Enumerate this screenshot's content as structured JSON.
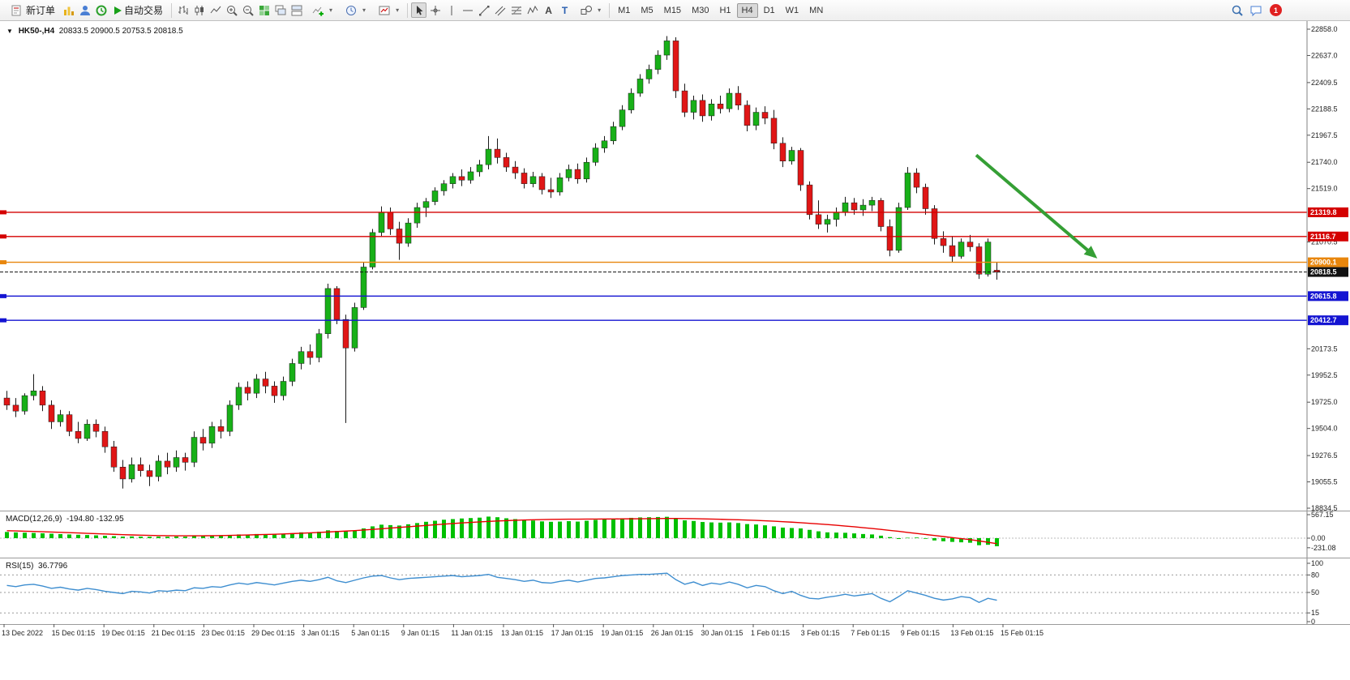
{
  "toolbar": {
    "new_order": "新订单",
    "auto_trading": "自动交易",
    "text_tool": "A",
    "label_tool": "T",
    "timeframes": [
      "M1",
      "M5",
      "M15",
      "M30",
      "H1",
      "H4",
      "D1",
      "W1",
      "MN"
    ],
    "active_timeframe": "H4",
    "notification_count": "1"
  },
  "chart_data": [
    {
      "type": "candlestick",
      "symbol": "HK50-",
      "period": "H4",
      "title": "HK50-,H4",
      "current_ohlc": "20833.5 20900.5 20753.5 20818.5",
      "ylim": [
        18720,
        22970
      ],
      "y_ticks": [
        "22858.0",
        "22637.0",
        "22409.5",
        "22188.5",
        "21967.5",
        "21740.0",
        "21519.0",
        "21070.5",
        "20173.5",
        "19952.5",
        "19725.0",
        "19504.0",
        "19276.5",
        "19055.5",
        "18834.5"
      ],
      "x_labels": [
        "13 Dec 2022",
        "15 Dec 01:15",
        "19 Dec 01:15",
        "21 Dec 01:15",
        "23 Dec 01:15",
        "29 Dec 01:15",
        "3 Jan 01:15",
        "5 Jan 01:15",
        "9 Jan 01:15",
        "11 Jan 01:15",
        "13 Jan 01:15",
        "17 Jan 01:15",
        "19 Jan 01:15",
        "26 Jan 01:15",
        "30 Jan 01:15",
        "1 Feb 01:15",
        "3 Feb 01:15",
        "7 Feb 01:15",
        "9 Feb 01:15",
        "13 Feb 01:15",
        "15 Feb 01:15"
      ],
      "hlines": [
        {
          "price": 21319.8,
          "label": "21319.8",
          "color": "#d40000"
        },
        {
          "price": 21116.7,
          "label": "21116.7",
          "color": "#d40000"
        },
        {
          "price": 20900.1,
          "label": "20900.1",
          "color": "#e8860c"
        },
        {
          "price": 20615.8,
          "label": "20615.8",
          "color": "#1414d2"
        },
        {
          "price": 20412.7,
          "label": "20412.7",
          "color": "#1414d2"
        }
      ],
      "bid_line": {
        "price": 20818.5,
        "label": "20818.5",
        "color": "#111111"
      },
      "arrow": {
        "from_bar": 109,
        "from_price": 21800,
        "to_bar": 122.3,
        "to_price": 20950,
        "color": "#359f35"
      },
      "colors": {
        "up": "#18b018",
        "down": "#e01616",
        "outline": "#1a1a1a"
      },
      "candles": [
        [
          19760,
          19820,
          19660,
          19700
        ],
        [
          19700,
          19760,
          19600,
          19650
        ],
        [
          19650,
          19800,
          19620,
          19780
        ],
        [
          19780,
          19960,
          19740,
          19820
        ],
        [
          19820,
          19860,
          19650,
          19700
        ],
        [
          19700,
          19740,
          19500,
          19560
        ],
        [
          19560,
          19660,
          19520,
          19620
        ],
        [
          19620,
          19650,
          19440,
          19480
        ],
        [
          19480,
          19560,
          19380,
          19420
        ],
        [
          19420,
          19580,
          19400,
          19540
        ],
        [
          19540,
          19580,
          19430,
          19480
        ],
        [
          19480,
          19520,
          19300,
          19350
        ],
        [
          19350,
          19400,
          19140,
          19180
        ],
        [
          19180,
          19240,
          19000,
          19080
        ],
        [
          19080,
          19260,
          19050,
          19200
        ],
        [
          19200,
          19260,
          19100,
          19150
        ],
        [
          19150,
          19200,
          19020,
          19100
        ],
        [
          19100,
          19280,
          19060,
          19230
        ],
        [
          19230,
          19300,
          19120,
          19180
        ],
        [
          19180,
          19320,
          19140,
          19260
        ],
        [
          19260,
          19300,
          19150,
          19220
        ],
        [
          19220,
          19480,
          19180,
          19430
        ],
        [
          19430,
          19500,
          19320,
          19380
        ],
        [
          19380,
          19560,
          19340,
          19520
        ],
        [
          19520,
          19580,
          19420,
          19480
        ],
        [
          19480,
          19740,
          19440,
          19700
        ],
        [
          19700,
          19890,
          19660,
          19850
        ],
        [
          19850,
          19900,
          19740,
          19800
        ],
        [
          19800,
          19960,
          19760,
          19920
        ],
        [
          19920,
          19980,
          19800,
          19860
        ],
        [
          19860,
          19900,
          19720,
          19780
        ],
        [
          19780,
          19940,
          19740,
          19900
        ],
        [
          19900,
          20090,
          19860,
          20050
        ],
        [
          20050,
          20190,
          20000,
          20150
        ],
        [
          20150,
          20210,
          20040,
          20100
        ],
        [
          20100,
          20340,
          20060,
          20300
        ],
        [
          20300,
          20720,
          20260,
          20680
        ],
        [
          20680,
          20700,
          20380,
          20420
        ],
        [
          20420,
          20460,
          19550,
          20180
        ],
        [
          20180,
          20560,
          20150,
          20520
        ],
        [
          20520,
          20900,
          20500,
          20860
        ],
        [
          20860,
          21180,
          20840,
          21150
        ],
        [
          21150,
          21370,
          21120,
          21320
        ],
        [
          21320,
          21360,
          21130,
          21180
        ],
        [
          21180,
          21240,
          20920,
          21060
        ],
        [
          21060,
          21270,
          21030,
          21230
        ],
        [
          21230,
          21400,
          21190,
          21360
        ],
        [
          21360,
          21440,
          21280,
          21410
        ],
        [
          21410,
          21530,
          21380,
          21500
        ],
        [
          21500,
          21590,
          21460,
          21560
        ],
        [
          21560,
          21650,
          21520,
          21620
        ],
        [
          21620,
          21680,
          21540,
          21590
        ],
        [
          21590,
          21700,
          21560,
          21660
        ],
        [
          21660,
          21760,
          21620,
          21720
        ],
        [
          21720,
          21960,
          21680,
          21850
        ],
        [
          21850,
          21940,
          21730,
          21780
        ],
        [
          21780,
          21820,
          21660,
          21700
        ],
        [
          21700,
          21750,
          21600,
          21650
        ],
        [
          21650,
          21690,
          21520,
          21560
        ],
        [
          21560,
          21660,
          21530,
          21620
        ],
        [
          21620,
          21650,
          21470,
          21510
        ],
        [
          21510,
          21610,
          21440,
          21490
        ],
        [
          21490,
          21650,
          21460,
          21610
        ],
        [
          21610,
          21720,
          21580,
          21680
        ],
        [
          21680,
          21730,
          21560,
          21600
        ],
        [
          21600,
          21780,
          21570,
          21740
        ],
        [
          21740,
          21900,
          21710,
          21860
        ],
        [
          21860,
          21960,
          21820,
          21920
        ],
        [
          21920,
          22080,
          21890,
          22040
        ],
        [
          22040,
          22220,
          22010,
          22180
        ],
        [
          22180,
          22360,
          22150,
          22320
        ],
        [
          22320,
          22480,
          22290,
          22440
        ],
        [
          22440,
          22560,
          22400,
          22520
        ],
        [
          22520,
          22680,
          22480,
          22640
        ],
        [
          22640,
          22800,
          22600,
          22760
        ],
        [
          22760,
          22790,
          22280,
          22340
        ],
        [
          22340,
          22400,
          22120,
          22160
        ],
        [
          22160,
          22300,
          22100,
          22260
        ],
        [
          22260,
          22310,
          22080,
          22130
        ],
        [
          22130,
          22270,
          22090,
          22230
        ],
        [
          22230,
          22300,
          22150,
          22190
        ],
        [
          22190,
          22360,
          22160,
          22320
        ],
        [
          22320,
          22380,
          22180,
          22220
        ],
        [
          22220,
          22260,
          22000,
          22050
        ],
        [
          22050,
          22200,
          22010,
          22160
        ],
        [
          22160,
          22210,
          22060,
          22110
        ],
        [
          22110,
          22180,
          21850,
          21900
        ],
        [
          21900,
          21950,
          21700,
          21750
        ],
        [
          21750,
          21870,
          21720,
          21840
        ],
        [
          21840,
          21860,
          21500,
          21550
        ],
        [
          21550,
          21580,
          21260,
          21300
        ],
        [
          21300,
          21420,
          21180,
          21220
        ],
        [
          21220,
          21300,
          21150,
          21260
        ],
        [
          21260,
          21360,
          21200,
          21320
        ],
        [
          21320,
          21450,
          21290,
          21400
        ],
        [
          21400,
          21440,
          21300,
          21340
        ],
        [
          21340,
          21430,
          21290,
          21380
        ],
        [
          21380,
          21450,
          21330,
          21420
        ],
        [
          21420,
          21440,
          21160,
          21200
        ],
        [
          21200,
          21260,
          20950,
          21000
        ],
        [
          21000,
          21400,
          20980,
          21360
        ],
        [
          21360,
          21700,
          21340,
          21650
        ],
        [
          21650,
          21690,
          21480,
          21530
        ],
        [
          21530,
          21560,
          21300,
          21350
        ],
        [
          21350,
          21380,
          21050,
          21100
        ],
        [
          21100,
          21160,
          20980,
          21040
        ],
        [
          21040,
          21120,
          20900,
          20950
        ],
        [
          20950,
          21100,
          20930,
          21070
        ],
        [
          21070,
          21130,
          20990,
          21030
        ],
        [
          21030,
          21060,
          20760,
          20800
        ],
        [
          20800,
          21100,
          20780,
          21070
        ],
        [
          20833.5,
          20900.5,
          20753.5,
          20818.5
        ]
      ]
    },
    {
      "type": "bar",
      "name": "MACD(12,26,9)",
      "values_text": "-194.80 -132.95",
      "y_ticks": [
        "567.15",
        "0.00",
        "-231.08"
      ],
      "colors": {
        "histogram": "#00c000",
        "signal": "#e80000"
      },
      "histogram": [
        150,
        140,
        132,
        126,
        118,
        108,
        98,
        90,
        82,
        76,
        68,
        58,
        48,
        38,
        42,
        38,
        34,
        38,
        34,
        40,
        36,
        52,
        48,
        58,
        54,
        72,
        90,
        86,
        100,
        96,
        90,
        100,
        120,
        140,
        136,
        156,
        190,
        175,
        165,
        185,
        235,
        285,
        325,
        315,
        305,
        335,
        365,
        395,
        420,
        445,
        460,
        475,
        485,
        495,
        520,
        505,
        480,
        460,
        430,
        425,
        405,
        395,
        400,
        410,
        400,
        420,
        440,
        455,
        470,
        480,
        490,
        500,
        505,
        510,
        515,
        470,
        430,
        415,
        390,
        380,
        375,
        380,
        365,
        340,
        330,
        310,
        285,
        255,
        245,
        235,
        200,
        165,
        140,
        135,
        130,
        115,
        100,
        90,
        60,
        25,
        -20,
        10,
        15,
        -15,
        -55,
        -75,
        -90,
        -100,
        -110,
        -170,
        -160,
        -194.8
      ],
      "signal_line": [
        180,
        174,
        168,
        162,
        155,
        148,
        141,
        133,
        125,
        117,
        109,
        101,
        93,
        85,
        78,
        72,
        67,
        63,
        60,
        58,
        57,
        57,
        58,
        60,
        63,
        67,
        72,
        77,
        83,
        89,
        95,
        102,
        110,
        119,
        128,
        138,
        149,
        160,
        171,
        183,
        196,
        211,
        227,
        243,
        259,
        275,
        291,
        307,
        323,
        339,
        354,
        368,
        381,
        393,
        404,
        414,
        423,
        431,
        438,
        444,
        449,
        453,
        456,
        458,
        459,
        460,
        461,
        462,
        463,
        465,
        467,
        469,
        471,
        473,
        475,
        475,
        473,
        470,
        466,
        461,
        455,
        449,
        443,
        436,
        428,
        419,
        409,
        398,
        386,
        373,
        359,
        344,
        328,
        311,
        293,
        274,
        254,
        233,
        211,
        188,
        164,
        139,
        114,
        89,
        64,
        39,
        14,
        -11,
        -36,
        -66,
        -100,
        -132.95
      ]
    },
    {
      "type": "line",
      "name": "RSI(15)",
      "value_text": "36.7796",
      "y_ticks": [
        "100",
        "80",
        "50",
        "15",
        "0"
      ],
      "levels": [
        80,
        50,
        15
      ],
      "color": "#3e8ed0",
      "values": [
        62,
        60,
        63,
        64,
        61,
        57,
        59,
        56,
        54,
        57,
        55,
        52,
        50,
        48,
        52,
        51,
        49,
        53,
        52,
        54,
        53,
        58,
        57,
        60,
        59,
        63,
        66,
        64,
        67,
        65,
        63,
        66,
        69,
        71,
        69,
        72,
        76,
        70,
        67,
        71,
        75,
        78,
        79,
        75,
        72,
        74,
        75,
        76,
        77,
        78,
        79,
        77,
        78,
        79,
        81,
        76,
        74,
        72,
        69,
        71,
        67,
        66,
        69,
        71,
        68,
        71,
        74,
        75,
        77,
        79,
        80,
        81,
        81,
        82,
        83,
        72,
        64,
        68,
        62,
        66,
        64,
        68,
        64,
        58,
        62,
        60,
        53,
        48,
        52,
        45,
        40,
        39,
        42,
        44,
        47,
        44,
        46,
        48,
        40,
        34,
        43,
        53,
        49,
        45,
        40,
        37,
        39,
        43,
        41,
        33,
        40,
        36.7796
      ]
    }
  ]
}
